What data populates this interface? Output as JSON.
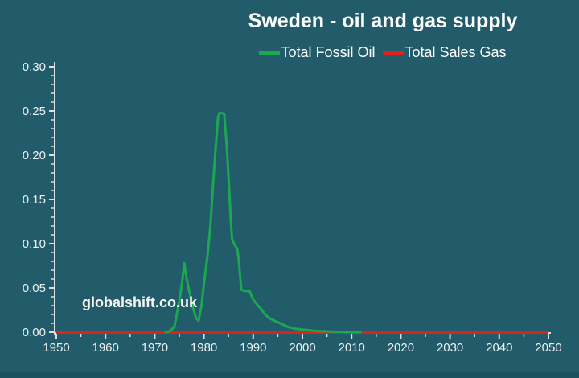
{
  "page": {
    "background_color": "#225C6B",
    "footer_bar_color": "#1C5260"
  },
  "title": "Sweden - oil and gas supply",
  "watermark": "globalshift.co.uk",
  "legend": {
    "position": "top",
    "items": [
      {
        "label": "Total Fossil Oil",
        "color": "#1AA850"
      },
      {
        "label": "Total Sales Gas",
        "color": "#E02019"
      }
    ]
  },
  "chart_data": {
    "type": "line",
    "title": "Sweden - oil and gas supply",
    "xlabel": "",
    "ylabel": "",
    "grid": false,
    "axis_color": "#DADEDF",
    "tick_label_color": "#EDF1F2",
    "x_axis": {
      "min": 1950,
      "max": 2050,
      "minor_tick_step": 5,
      "label_step": 10,
      "labels": [
        1950,
        1960,
        1970,
        1980,
        1990,
        2000,
        2010,
        2020,
        2030,
        2040,
        2050
      ]
    },
    "y_axis": {
      "min": 0,
      "max": 0.3,
      "minor_tick_step": 0.01,
      "major_tick_step": 0.05,
      "labels": [
        "0.00",
        "0.05",
        "0.10",
        "0.15",
        "0.20",
        "0.25",
        "0.30"
      ]
    },
    "series": [
      {
        "name": "Total Sales Gas",
        "color": "#E02019",
        "stroke_width": 4,
        "points": [
          [
            1950,
            0
          ],
          [
            2050,
            0
          ]
        ]
      },
      {
        "name": "Total Fossil Oil",
        "color": "#1AA850",
        "stroke_width": 3,
        "points": [
          [
            1972,
            0
          ],
          [
            1973,
            0.001
          ],
          [
            1974,
            0.006
          ],
          [
            1975,
            0.035
          ],
          [
            1975.6,
            0.058
          ],
          [
            1976,
            0.078
          ],
          [
            1976.5,
            0.06
          ],
          [
            1977,
            0.047
          ],
          [
            1977.8,
            0.027
          ],
          [
            1978.4,
            0.016
          ],
          [
            1978.9,
            0.013
          ],
          [
            1979.5,
            0.03
          ],
          [
            1980,
            0.055
          ],
          [
            1980.7,
            0.085
          ],
          [
            1981.3,
            0.12
          ],
          [
            1981.9,
            0.17
          ],
          [
            1982.4,
            0.21
          ],
          [
            1982.9,
            0.244
          ],
          [
            1983.2,
            0.248
          ],
          [
            1984.1,
            0.247
          ],
          [
            1984.6,
            0.213
          ],
          [
            1985,
            0.175
          ],
          [
            1985.4,
            0.133
          ],
          [
            1985.7,
            0.106
          ],
          [
            1986.1,
            0.1
          ],
          [
            1986.8,
            0.094
          ],
          [
            1987.1,
            0.079
          ],
          [
            1987.4,
            0.06
          ],
          [
            1987.6,
            0.048
          ],
          [
            1988,
            0.047
          ],
          [
            1989.3,
            0.046
          ],
          [
            1990,
            0.037
          ],
          [
            1990.8,
            0.031
          ],
          [
            1991.5,
            0.027
          ],
          [
            1992.3,
            0.021
          ],
          [
            1993.2,
            0.016
          ],
          [
            1994.3,
            0.013
          ],
          [
            1995.5,
            0.01
          ],
          [
            1997,
            0.006
          ],
          [
            1998.5,
            0.004
          ],
          [
            2000,
            0.003
          ],
          [
            2002,
            0.0017
          ],
          [
            2004,
            0.001
          ],
          [
            2006,
            0.0006
          ],
          [
            2008,
            0.0003
          ],
          [
            2010,
            0.0001
          ],
          [
            2012,
            0
          ]
        ]
      }
    ]
  }
}
